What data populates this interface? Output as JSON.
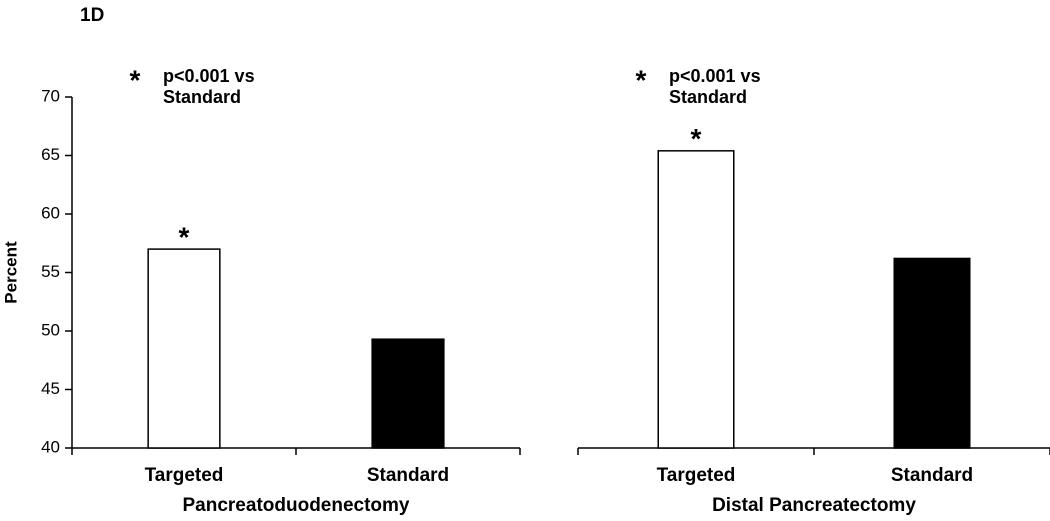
{
  "figure_label": "1D",
  "chart_data": [
    {
      "type": "bar",
      "categories": [
        "Targeted",
        "Standard"
      ],
      "values": [
        57.0,
        49.3
      ],
      "colors": [
        "#ffffff",
        "#000000"
      ],
      "xlabel": "Pancreatoduodenectomy",
      "ylabel": "Percent",
      "ylim": [
        40,
        70
      ],
      "yticks": [
        40,
        45,
        50,
        55,
        60,
        65,
        70
      ],
      "show_y_axis": true,
      "annotation": {
        "symbol": "*",
        "lines": [
          "p<0.001 vs",
          "Standard"
        ]
      },
      "marked": [
        true,
        false
      ]
    },
    {
      "type": "bar",
      "categories": [
        "Targeted",
        "Standard"
      ],
      "values": [
        65.4,
        56.2
      ],
      "colors": [
        "#ffffff",
        "#000000"
      ],
      "xlabel": "Distal Pancreatectomy",
      "ylim": [
        40,
        70
      ],
      "show_y_axis": false,
      "annotation": {
        "symbol": "*",
        "lines": [
          "p<0.001 vs",
          "Standard"
        ]
      },
      "marked": [
        true,
        false
      ]
    }
  ]
}
